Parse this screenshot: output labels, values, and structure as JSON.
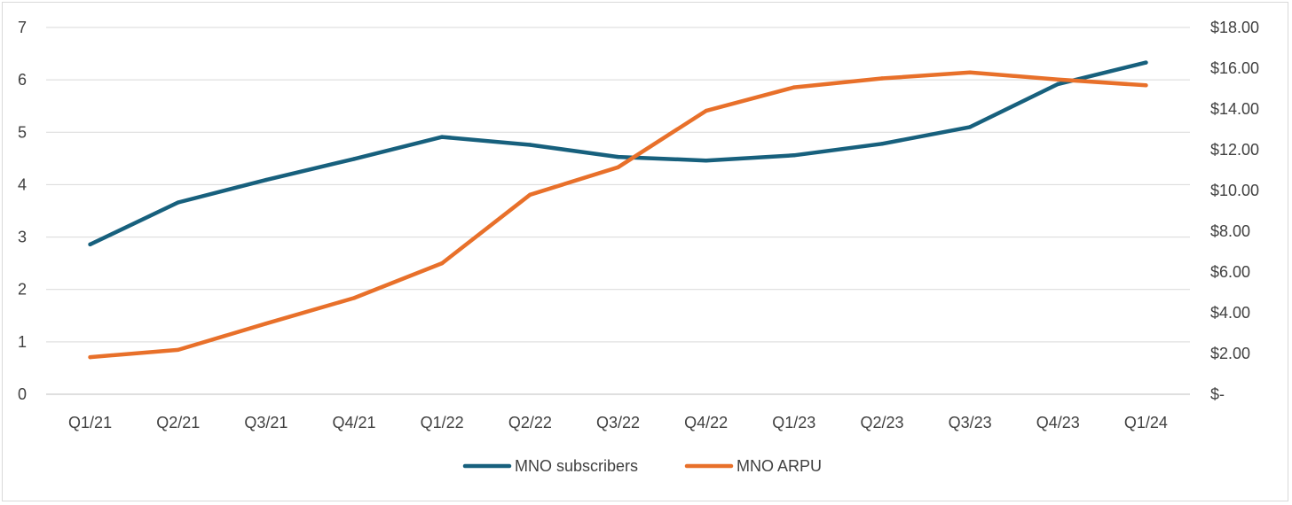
{
  "chart_data": {
    "type": "line",
    "title": "",
    "xlabel": "",
    "ylabel": "",
    "y2label": "",
    "categories": [
      "Q1/21",
      "Q2/21",
      "Q3/21",
      "Q4/21",
      "Q1/22",
      "Q2/22",
      "Q3/22",
      "Q4/22",
      "Q1/23",
      "Q2/23",
      "Q3/23",
      "Q4/23",
      "Q1/24"
    ],
    "ylim": [
      0,
      7
    ],
    "y_ticks": [
      "0",
      "1",
      "2",
      "3",
      "4",
      "5",
      "6",
      "7"
    ],
    "y2lim": [
      0,
      18
    ],
    "y2_ticks": [
      "$-",
      "$2.00",
      "$4.00",
      "$6.00",
      "$8.00",
      "$10.00",
      "$12.00",
      "$14.00",
      "$16.00",
      "$18.00"
    ],
    "grid": true,
    "legend_position": "bottom",
    "series": [
      {
        "name": "MNO subscribers",
        "axis": "left",
        "color": "#17607d",
        "values": [
          2.86,
          3.66,
          4.09,
          4.49,
          4.91,
          4.76,
          4.53,
          4.46,
          4.56,
          4.78,
          5.1,
          5.92,
          6.33
        ]
      },
      {
        "name": "MNO ARPU",
        "axis": "right",
        "color": "#e8702a",
        "values": [
          1.82,
          2.18,
          3.47,
          4.72,
          6.43,
          9.79,
          11.14,
          13.91,
          15.06,
          15.5,
          15.79,
          15.45,
          15.16
        ]
      }
    ]
  }
}
